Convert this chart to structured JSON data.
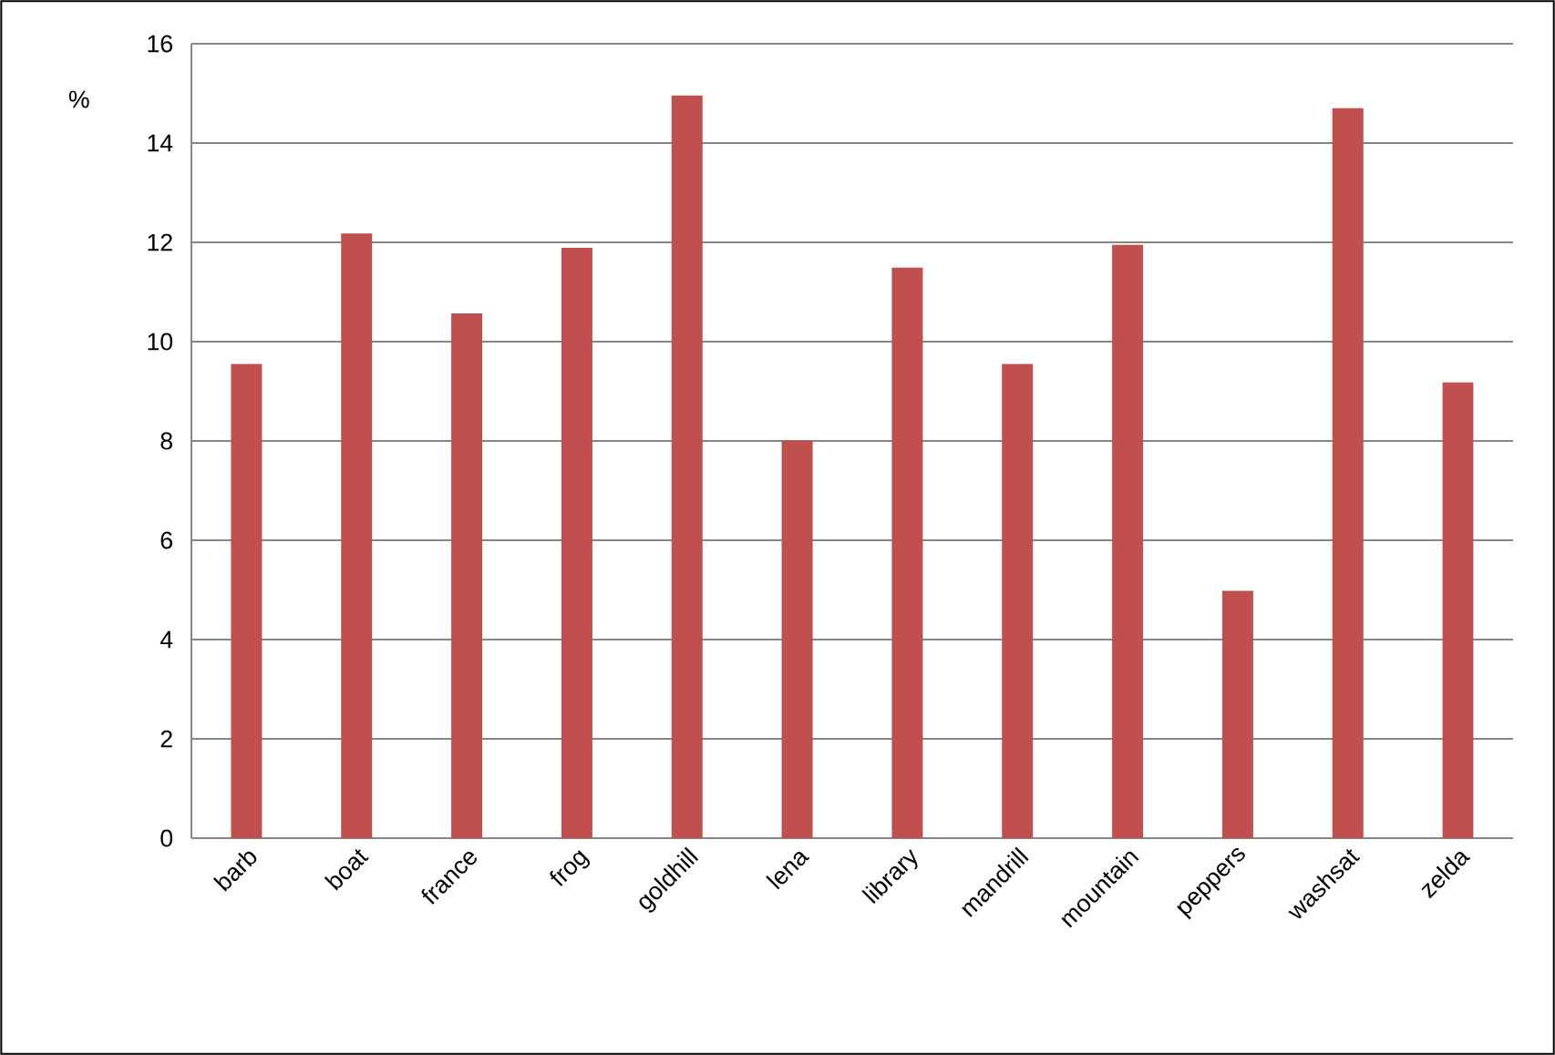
{
  "chart_data": {
    "type": "bar",
    "ylabel": "%",
    "categories": [
      "barb",
      "boat",
      "france",
      "frog",
      "goldhill",
      "lena",
      "library",
      "mandrill",
      "mountain",
      "peppers",
      "washsat",
      "zelda"
    ],
    "values": [
      9.55,
      12.18,
      10.57,
      11.89,
      14.96,
      8.01,
      11.49,
      9.55,
      11.95,
      4.98,
      14.7,
      9.18
    ],
    "color": "#c0504d",
    "ylim": [
      0,
      16
    ],
    "yticks": [
      0,
      2,
      4,
      6,
      8,
      10,
      12,
      14,
      16
    ],
    "grid": "y"
  }
}
